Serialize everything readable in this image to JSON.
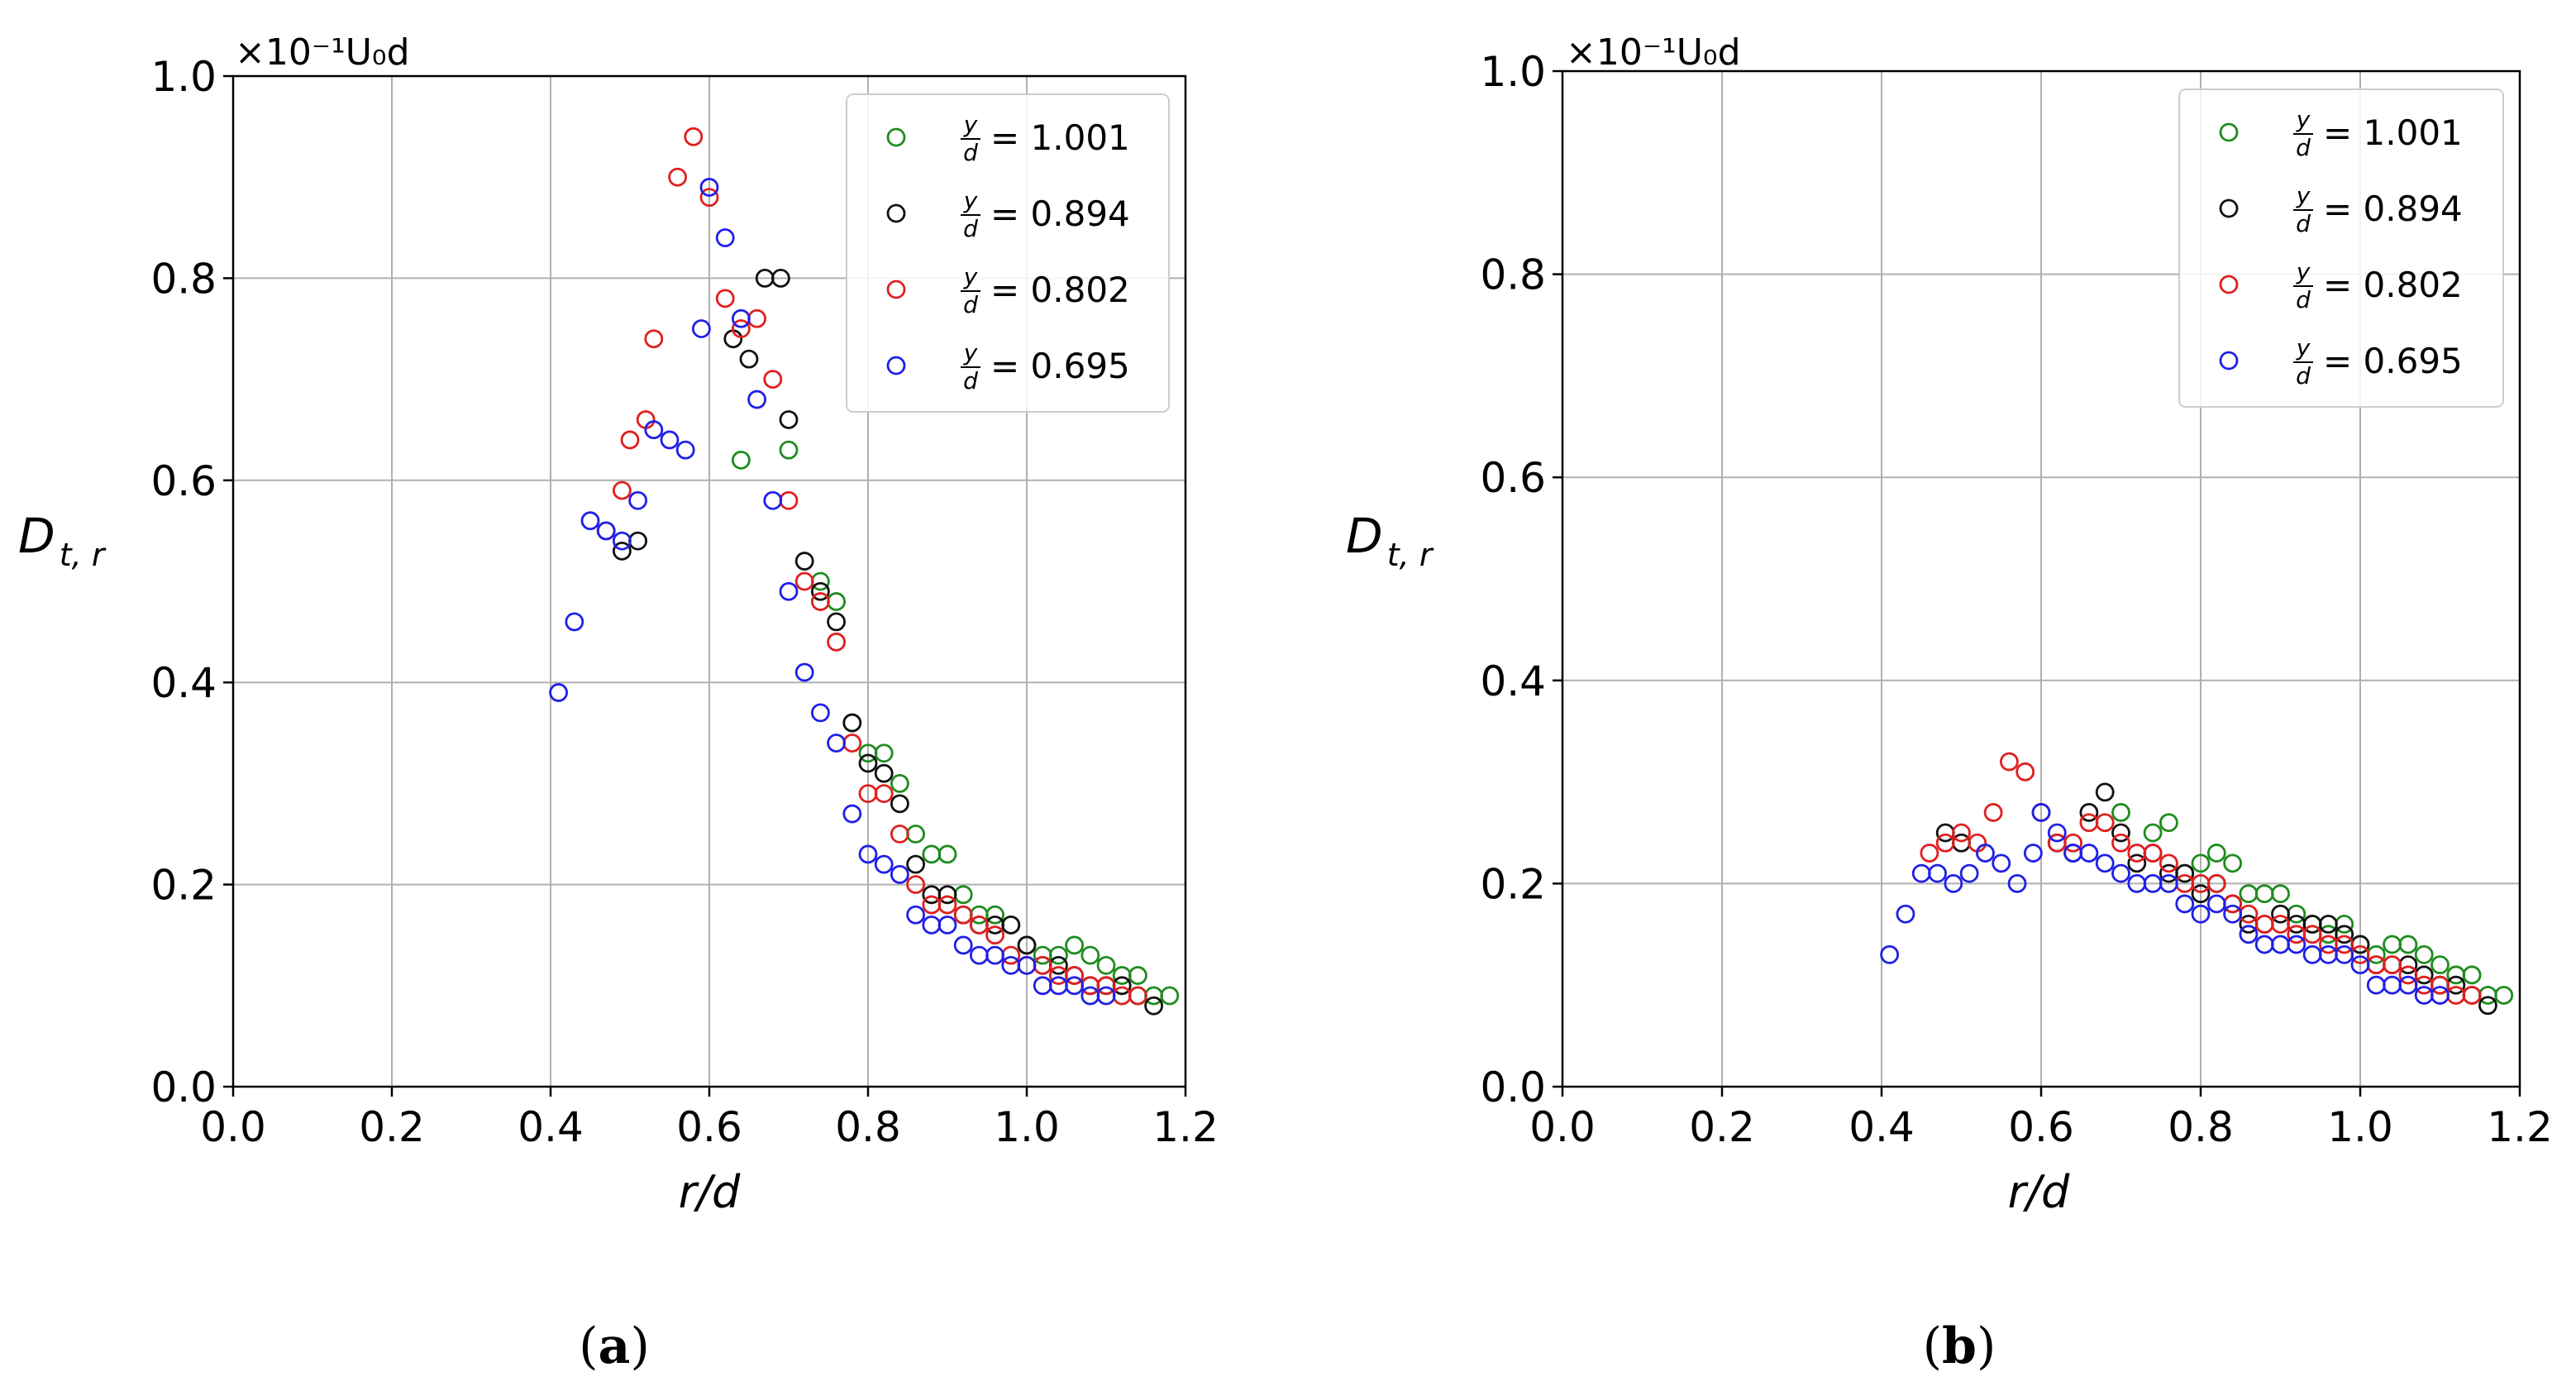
{
  "chart_data": [
    {
      "type": "scatter",
      "panel_label": "a",
      "xlabel": "r/d",
      "ylabel_main": "D",
      "ylabel_sub": "t, r",
      "multiplier": "×10⁻¹U₀d",
      "xlim": [
        0.0,
        1.2
      ],
      "ylim": [
        0.0,
        1.0
      ],
      "xticks": [
        "0.0",
        "0.2",
        "0.4",
        "0.6",
        "0.8",
        "1.0",
        "1.2"
      ],
      "yticks": [
        "0.0",
        "0.2",
        "0.4",
        "0.6",
        "0.8",
        "1.0"
      ],
      "grid": true,
      "legend_position": "top-right",
      "series": [
        {
          "name": "y/d = 1.001",
          "frac_num": "y",
          "frac_den": "d",
          "value_text": "= 1.001",
          "color": "#1f8b1f",
          "x": [
            0.64,
            0.7,
            0.74,
            0.76,
            0.78,
            0.8,
            0.82,
            0.84,
            0.86,
            0.88,
            0.9,
            0.92,
            0.94,
            0.96,
            0.98,
            1.0,
            1.02,
            1.04,
            1.06,
            1.08,
            1.1,
            1.12,
            1.14,
            1.16,
            1.18
          ],
          "y": [
            0.62,
            0.63,
            0.5,
            0.48,
            0.36,
            0.33,
            0.33,
            0.3,
            0.25,
            0.23,
            0.23,
            0.19,
            0.17,
            0.17,
            0.16,
            0.14,
            0.13,
            0.13,
            0.14,
            0.13,
            0.12,
            0.11,
            0.11,
            0.09,
            0.09
          ]
        },
        {
          "name": "y/d = 0.894",
          "frac_num": "y",
          "frac_den": "d",
          "value_text": "= 0.894",
          "color": "#111111",
          "x": [
            0.49,
            0.51,
            0.63,
            0.65,
            0.67,
            0.69,
            0.7,
            0.72,
            0.74,
            0.76,
            0.78,
            0.8,
            0.82,
            0.84,
            0.86,
            0.88,
            0.9,
            0.92,
            0.94,
            0.96,
            0.98,
            1.0,
            1.02,
            1.04,
            1.06,
            1.08,
            1.1,
            1.12,
            1.14,
            1.16
          ],
          "y": [
            0.53,
            0.54,
            0.74,
            0.72,
            0.8,
            0.8,
            0.66,
            0.52,
            0.49,
            0.46,
            0.36,
            0.32,
            0.31,
            0.28,
            0.22,
            0.19,
            0.19,
            0.17,
            0.16,
            0.16,
            0.16,
            0.14,
            0.12,
            0.12,
            0.11,
            0.1,
            0.1,
            0.1,
            0.09,
            0.08
          ]
        },
        {
          "name": "y/d = 0.802",
          "frac_num": "y",
          "frac_den": "d",
          "value_text": "= 0.802",
          "color": "#e01f1f",
          "x": [
            0.47,
            0.49,
            0.5,
            0.52,
            0.53,
            0.56,
            0.58,
            0.6,
            0.62,
            0.64,
            0.66,
            0.68,
            0.7,
            0.72,
            0.74,
            0.76,
            0.78,
            0.8,
            0.82,
            0.84,
            0.86,
            0.88,
            0.9,
            0.92,
            0.94,
            0.96,
            0.98,
            1.0,
            1.02,
            1.04,
            1.06,
            1.08,
            1.1,
            1.12,
            1.14
          ],
          "y": [
            0.55,
            0.59,
            0.64,
            0.66,
            0.74,
            0.9,
            0.94,
            0.88,
            0.78,
            0.75,
            0.76,
            0.7,
            0.58,
            0.5,
            0.48,
            0.44,
            0.34,
            0.29,
            0.29,
            0.25,
            0.2,
            0.18,
            0.18,
            0.17,
            0.16,
            0.15,
            0.13,
            0.12,
            0.12,
            0.11,
            0.11,
            0.1,
            0.1,
            0.09,
            0.09
          ]
        },
        {
          "name": "y/d = 0.695",
          "frac_num": "y",
          "frac_den": "d",
          "value_text": "= 0.695",
          "color": "#1f1fe8",
          "x": [
            0.41,
            0.43,
            0.45,
            0.47,
            0.49,
            0.51,
            0.53,
            0.55,
            0.57,
            0.59,
            0.6,
            0.62,
            0.64,
            0.66,
            0.68,
            0.7,
            0.72,
            0.74,
            0.76,
            0.78,
            0.8,
            0.82,
            0.84,
            0.86,
            0.88,
            0.9,
            0.92,
            0.94,
            0.96,
            0.98,
            1.0,
            1.02,
            1.04,
            1.06,
            1.08,
            1.1
          ],
          "y": [
            0.39,
            0.46,
            0.56,
            0.55,
            0.54,
            0.58,
            0.65,
            0.64,
            0.63,
            0.75,
            0.89,
            0.84,
            0.76,
            0.68,
            0.58,
            0.49,
            0.41,
            0.37,
            0.34,
            0.27,
            0.23,
            0.22,
            0.21,
            0.17,
            0.16,
            0.16,
            0.14,
            0.13,
            0.13,
            0.12,
            0.12,
            0.1,
            0.1,
            0.1,
            0.09,
            0.09
          ]
        }
      ]
    },
    {
      "type": "scatter",
      "panel_label": "b",
      "xlabel": "r/d",
      "ylabel_main": "D",
      "ylabel_sub": "t, r",
      "multiplier": "×10⁻¹U₀d",
      "xlim": [
        0.0,
        1.2
      ],
      "ylim": [
        0.0,
        1.0
      ],
      "xticks": [
        "0.0",
        "0.2",
        "0.4",
        "0.6",
        "0.8",
        "1.0",
        "1.2"
      ],
      "yticks": [
        "0.0",
        "0.2",
        "0.4",
        "0.6",
        "0.8",
        "1.0"
      ],
      "grid": true,
      "legend_position": "top-right",
      "series": [
        {
          "name": "y/d = 1.001",
          "frac_num": "y",
          "frac_den": "d",
          "value_text": "= 1.001",
          "color": "#1f8b1f",
          "x": [
            0.7,
            0.74,
            0.76,
            0.78,
            0.8,
            0.82,
            0.84,
            0.86,
            0.88,
            0.9,
            0.92,
            0.94,
            0.96,
            0.98,
            1.0,
            1.02,
            1.04,
            1.06,
            1.08,
            1.1,
            1.12,
            1.14,
            1.16,
            1.18
          ],
          "y": [
            0.27,
            0.25,
            0.26,
            0.21,
            0.22,
            0.23,
            0.22,
            0.19,
            0.19,
            0.19,
            0.17,
            0.16,
            0.15,
            0.16,
            0.14,
            0.13,
            0.14,
            0.14,
            0.13,
            0.12,
            0.11,
            0.11,
            0.09,
            0.09
          ]
        },
        {
          "name": "y/d = 0.894",
          "frac_num": "y",
          "frac_den": "d",
          "value_text": "= 0.894",
          "color": "#111111",
          "x": [
            0.48,
            0.5,
            0.62,
            0.64,
            0.66,
            0.68,
            0.7,
            0.72,
            0.74,
            0.76,
            0.78,
            0.8,
            0.82,
            0.84,
            0.86,
            0.88,
            0.9,
            0.92,
            0.94,
            0.96,
            0.98,
            1.0,
            1.02,
            1.04,
            1.06,
            1.08,
            1.1,
            1.12,
            1.14,
            1.16
          ],
          "y": [
            0.25,
            0.24,
            0.24,
            0.23,
            0.27,
            0.29,
            0.25,
            0.22,
            0.23,
            0.21,
            0.21,
            0.19,
            0.2,
            0.18,
            0.16,
            0.16,
            0.17,
            0.16,
            0.16,
            0.16,
            0.15,
            0.14,
            0.12,
            0.12,
            0.12,
            0.11,
            0.1,
            0.1,
            0.09,
            0.08
          ]
        },
        {
          "name": "y/d = 0.802",
          "frac_num": "y",
          "frac_den": "d",
          "value_text": "= 0.802",
          "color": "#e01f1f",
          "x": [
            0.46,
            0.48,
            0.5,
            0.52,
            0.54,
            0.56,
            0.58,
            0.6,
            0.62,
            0.64,
            0.66,
            0.68,
            0.7,
            0.72,
            0.74,
            0.76,
            0.78,
            0.8,
            0.82,
            0.84,
            0.86,
            0.88,
            0.9,
            0.92,
            0.94,
            0.96,
            0.98,
            1.0,
            1.02,
            1.04,
            1.06,
            1.08,
            1.1,
            1.12,
            1.14
          ],
          "y": [
            0.23,
            0.24,
            0.25,
            0.24,
            0.27,
            0.32,
            0.31,
            0.27,
            0.24,
            0.24,
            0.26,
            0.26,
            0.24,
            0.23,
            0.23,
            0.22,
            0.2,
            0.2,
            0.2,
            0.18,
            0.17,
            0.16,
            0.16,
            0.15,
            0.15,
            0.14,
            0.14,
            0.13,
            0.12,
            0.12,
            0.11,
            0.1,
            0.1,
            0.09,
            0.09
          ]
        },
        {
          "name": "y/d = 0.695",
          "frac_num": "y",
          "frac_den": "d",
          "value_text": "= 0.695",
          "color": "#1f1fe8",
          "x": [
            0.41,
            0.43,
            0.45,
            0.47,
            0.49,
            0.51,
            0.53,
            0.55,
            0.57,
            0.59,
            0.6,
            0.62,
            0.64,
            0.66,
            0.68,
            0.7,
            0.72,
            0.74,
            0.76,
            0.78,
            0.8,
            0.82,
            0.84,
            0.86,
            0.88,
            0.9,
            0.92,
            0.94,
            0.96,
            0.98,
            1.0,
            1.02,
            1.04,
            1.06,
            1.08,
            1.1
          ],
          "y": [
            0.13,
            0.17,
            0.21,
            0.21,
            0.2,
            0.21,
            0.23,
            0.22,
            0.2,
            0.23,
            0.27,
            0.25,
            0.23,
            0.23,
            0.22,
            0.21,
            0.2,
            0.2,
            0.2,
            0.18,
            0.17,
            0.18,
            0.17,
            0.15,
            0.14,
            0.14,
            0.14,
            0.13,
            0.13,
            0.13,
            0.12,
            0.1,
            0.1,
            0.1,
            0.09,
            0.09
          ]
        }
      ]
    }
  ]
}
